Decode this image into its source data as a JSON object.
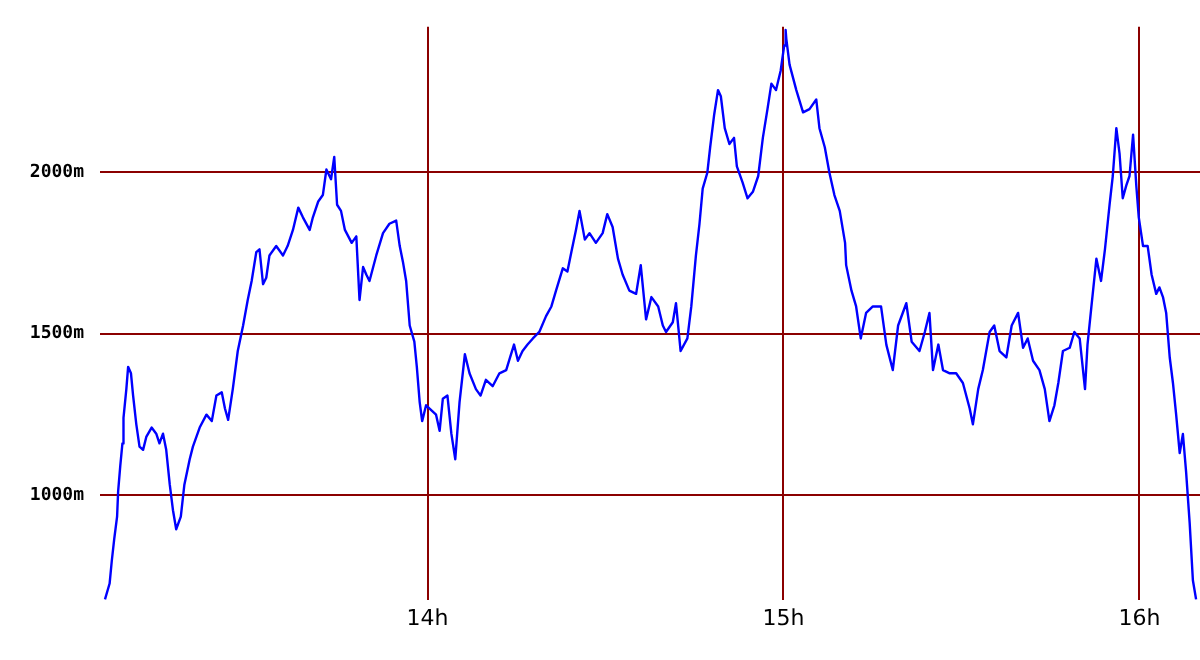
{
  "chart_data": {
    "type": "line",
    "x": [
      13.094,
      13.107,
      13.113,
      13.12,
      13.128,
      13.131,
      13.137,
      13.143,
      13.146,
      13.154,
      13.159,
      13.167,
      13.173,
      13.182,
      13.191,
      13.201,
      13.21,
      13.225,
      13.238,
      13.247,
      13.257,
      13.266,
      13.276,
      13.285,
      13.294,
      13.307,
      13.317,
      13.332,
      13.341,
      13.36,
      13.379,
      13.394,
      13.407,
      13.422,
      13.431,
      13.44,
      13.453,
      13.467,
      13.482,
      13.495,
      13.506,
      13.519,
      13.528,
      13.538,
      13.547,
      13.556,
      13.575,
      13.594,
      13.607,
      13.622,
      13.637,
      13.65,
      13.669,
      13.678,
      13.693,
      13.706,
      13.716,
      13.729,
      13.738,
      13.746,
      13.757,
      13.768,
      13.787,
      13.8,
      13.809,
      13.819,
      13.828,
      13.837,
      13.856,
      13.875,
      13.893,
      13.912,
      13.922,
      13.931,
      13.94,
      13.95,
      13.963,
      13.97,
      13.978,
      13.985,
      13.996,
      14.024,
      14.034,
      14.043,
      14.056,
      14.067,
      14.078,
      14.09,
      14.105,
      14.118,
      14.136,
      14.149,
      14.164,
      14.183,
      14.202,
      14.221,
      14.243,
      14.254,
      14.267,
      14.281,
      14.296,
      14.314,
      14.333,
      14.348,
      14.361,
      14.38,
      14.393,
      14.404,
      14.417,
      14.427,
      14.442,
      14.455,
      14.473,
      14.492,
      14.505,
      14.52,
      14.535,
      14.548,
      14.567,
      14.586,
      14.599,
      14.614,
      14.629,
      14.648,
      14.661,
      14.67,
      14.689,
      14.698,
      14.711,
      14.73,
      14.741,
      14.754,
      14.764,
      14.773,
      14.786,
      14.794,
      14.805,
      14.816,
      14.824,
      14.835,
      14.848,
      14.861,
      14.869,
      14.885,
      14.899,
      14.914,
      14.929,
      14.942,
      14.955,
      14.966,
      14.979,
      14.992,
      15.002,
      15.006,
      15.008,
      15.017,
      15.036,
      15.055,
      15.073,
      15.092,
      15.101,
      15.116,
      15.129,
      15.143,
      15.158,
      15.173,
      15.176,
      15.191,
      15.204,
      15.217,
      15.232,
      15.251,
      15.274,
      15.289,
      15.307,
      15.322,
      15.345,
      15.36,
      15.382,
      15.397,
      15.41,
      15.42,
      15.435,
      15.448,
      15.467,
      15.485,
      15.504,
      15.523,
      15.532,
      15.547,
      15.56,
      15.579,
      15.592,
      15.607,
      15.626,
      15.641,
      15.659,
      15.673,
      15.686,
      15.701,
      15.719,
      15.734,
      15.747,
      15.761,
      15.772,
      15.785,
      15.804,
      15.817,
      15.832,
      15.847,
      15.854,
      15.865,
      15.879,
      15.892,
      15.903,
      15.916,
      15.925,
      15.935,
      15.944,
      15.953,
      15.963,
      15.972,
      15.982,
      15.991,
      15.998,
      16.01,
      16.023,
      16.034,
      16.047,
      16.056,
      16.066,
      16.075,
      16.085,
      16.094,
      16.103,
      16.113,
      16.122,
      16.131,
      16.141,
      16.15,
      16.159
    ],
    "series": [
      {
        "color": "#0000ff",
        "values": [
          677,
          726,
          795,
          864,
          933,
          1012,
          1091,
          1160,
          1239,
          1328,
          1397,
          1377,
          1308,
          1219,
          1150,
          1140,
          1180,
          1209,
          1190,
          1160,
          1190,
          1140,
          1032,
          953,
          894,
          933,
          1032,
          1111,
          1150,
          1209,
          1249,
          1229,
          1308,
          1318,
          1268,
          1233,
          1328,
          1446,
          1525,
          1604,
          1663,
          1752,
          1761,
          1653,
          1673,
          1742,
          1771,
          1742,
          1771,
          1821,
          1890,
          1860,
          1821,
          1860,
          1909,
          1929,
          2008,
          1978,
          2047,
          1899,
          1880,
          1821,
          1781,
          1801,
          1604,
          1706,
          1683,
          1663,
          1742,
          1811,
          1840,
          1850,
          1771,
          1722,
          1663,
          1525,
          1475,
          1397,
          1288,
          1229,
          1278,
          1249,
          1199,
          1298,
          1308,
          1190,
          1111,
          1288,
          1436,
          1377,
          1328,
          1308,
          1357,
          1337,
          1377,
          1387,
          1466,
          1416,
          1446,
          1466,
          1485,
          1505,
          1554,
          1584,
          1633,
          1702,
          1692,
          1752,
          1821,
          1880,
          1791,
          1811,
          1781,
          1811,
          1870,
          1830,
          1732,
          1683,
          1633,
          1623,
          1712,
          1544,
          1613,
          1584,
          1525,
          1505,
          1535,
          1594,
          1446,
          1485,
          1584,
          1742,
          1840,
          1949,
          1998,
          2077,
          2176,
          2254,
          2235,
          2136,
          2087,
          2106,
          2018,
          1968,
          1919,
          1939,
          1988,
          2106,
          2195,
          2274,
          2254,
          2314,
          2392,
          2440,
          2412,
          2333,
          2254,
          2185,
          2195,
          2225,
          2136,
          2077,
          1998,
          1929,
          1880,
          1781,
          1712,
          1633,
          1584,
          1485,
          1564,
          1584,
          1584,
          1465,
          1387,
          1525,
          1594,
          1475,
          1446,
          1505,
          1564,
          1387,
          1466,
          1387,
          1377,
          1377,
          1347,
          1268,
          1219,
          1328,
          1387,
          1505,
          1525,
          1446,
          1426,
          1525,
          1564,
          1456,
          1485,
          1416,
          1387,
          1328,
          1229,
          1278,
          1347,
          1446,
          1456,
          1505,
          1485,
          1328,
          1466,
          1584,
          1732,
          1663,
          1761,
          1899,
          1988,
          2136,
          2057,
          1919,
          1959,
          1988,
          2116,
          1959,
          1860,
          1771,
          1771,
          1683,
          1623,
          1643,
          1613,
          1564,
          1426,
          1347,
          1249,
          1130,
          1189,
          1071,
          913,
          736,
          677
        ]
      }
    ],
    "xlim": [
      13.08,
      16.17
    ],
    "xticks": [
      {
        "value": 14,
        "label": "14h"
      },
      {
        "value": 15,
        "label": "15h"
      },
      {
        "value": 16,
        "label": "16h"
      }
    ],
    "ylim": [
      675,
      2450
    ],
    "yticks": [
      {
        "value": 1000,
        "label": "1000m"
      },
      {
        "value": 1500,
        "label": "1500m"
      },
      {
        "value": 2000,
        "label": "2000m"
      }
    ],
    "grid": true,
    "legend": false,
    "marker": "none",
    "line_style": "solid"
  }
}
